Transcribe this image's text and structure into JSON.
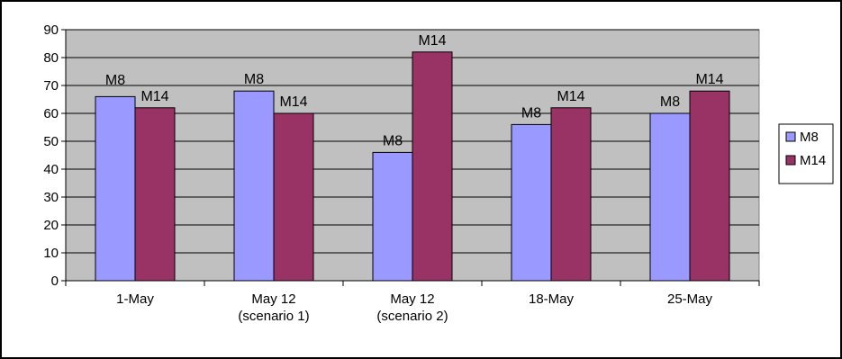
{
  "chart_data": {
    "type": "bar",
    "categories": [
      [
        "1-May"
      ],
      [
        "May 12",
        "(scenario 1)"
      ],
      [
        "May 12",
        "(scenario 2)"
      ],
      [
        "18-May"
      ],
      [
        "25-May"
      ]
    ],
    "series": [
      {
        "name": "M8",
        "values": [
          66,
          68,
          46,
          56,
          60
        ],
        "color": "#9999ff",
        "labels": [
          "M8",
          "M8",
          "M8",
          "M8",
          "M8"
        ]
      },
      {
        "name": "M14",
        "values": [
          62,
          60,
          82,
          62,
          68
        ],
        "color": "#993366",
        "labels": [
          "M14",
          "M14",
          "M14",
          "M14",
          "M14"
        ]
      }
    ],
    "ylim": [
      0,
      90
    ],
    "yticks": [
      0,
      10,
      20,
      30,
      40,
      50,
      60,
      70,
      80,
      90
    ],
    "plot_background": "#c0c0c0",
    "grid": true,
    "legend": {
      "placement": "right",
      "entries": [
        "M8",
        "M14"
      ]
    }
  }
}
